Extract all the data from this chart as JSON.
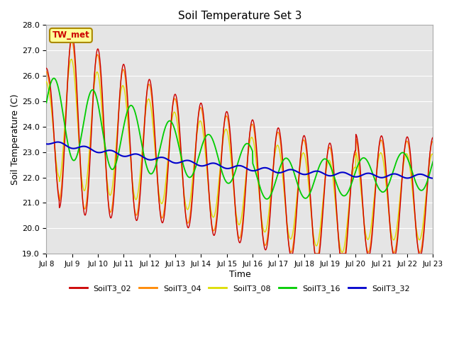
{
  "title": "Soil Temperature Set 3",
  "xlabel": "Time",
  "ylabel": "Soil Temperature (C)",
  "ylim": [
    19.0,
    28.0
  ],
  "yticks": [
    19.0,
    20.0,
    21.0,
    22.0,
    23.0,
    24.0,
    25.0,
    26.0,
    27.0,
    28.0
  ],
  "xtick_labels": [
    "Jul 8",
    "Jul 9",
    "Jul 10",
    "Jul 11",
    "Jul 12",
    "Jul 13",
    "Jul 14",
    "Jul 15",
    "Jul 16",
    "Jul 17",
    "Jul 18",
    "Jul 19",
    "Jul 20",
    "Jul 21",
    "Jul 22",
    "Jul 23"
  ],
  "colors": {
    "SoilT3_02": "#cc0000",
    "SoilT3_04": "#ff8800",
    "SoilT3_08": "#dddd00",
    "SoilT3_16": "#00cc00",
    "SoilT3_32": "#0000cc"
  },
  "tw_met_label": "TW_met",
  "tw_met_color": "#cc0000",
  "tw_met_bg": "#ffff99",
  "tw_met_edge": "#aa8800",
  "background_color": "#e5e5e5",
  "grid_color": "#ffffff",
  "linewidth": 1.0,
  "figsize": [
    6.4,
    4.8
  ],
  "dpi": 100
}
